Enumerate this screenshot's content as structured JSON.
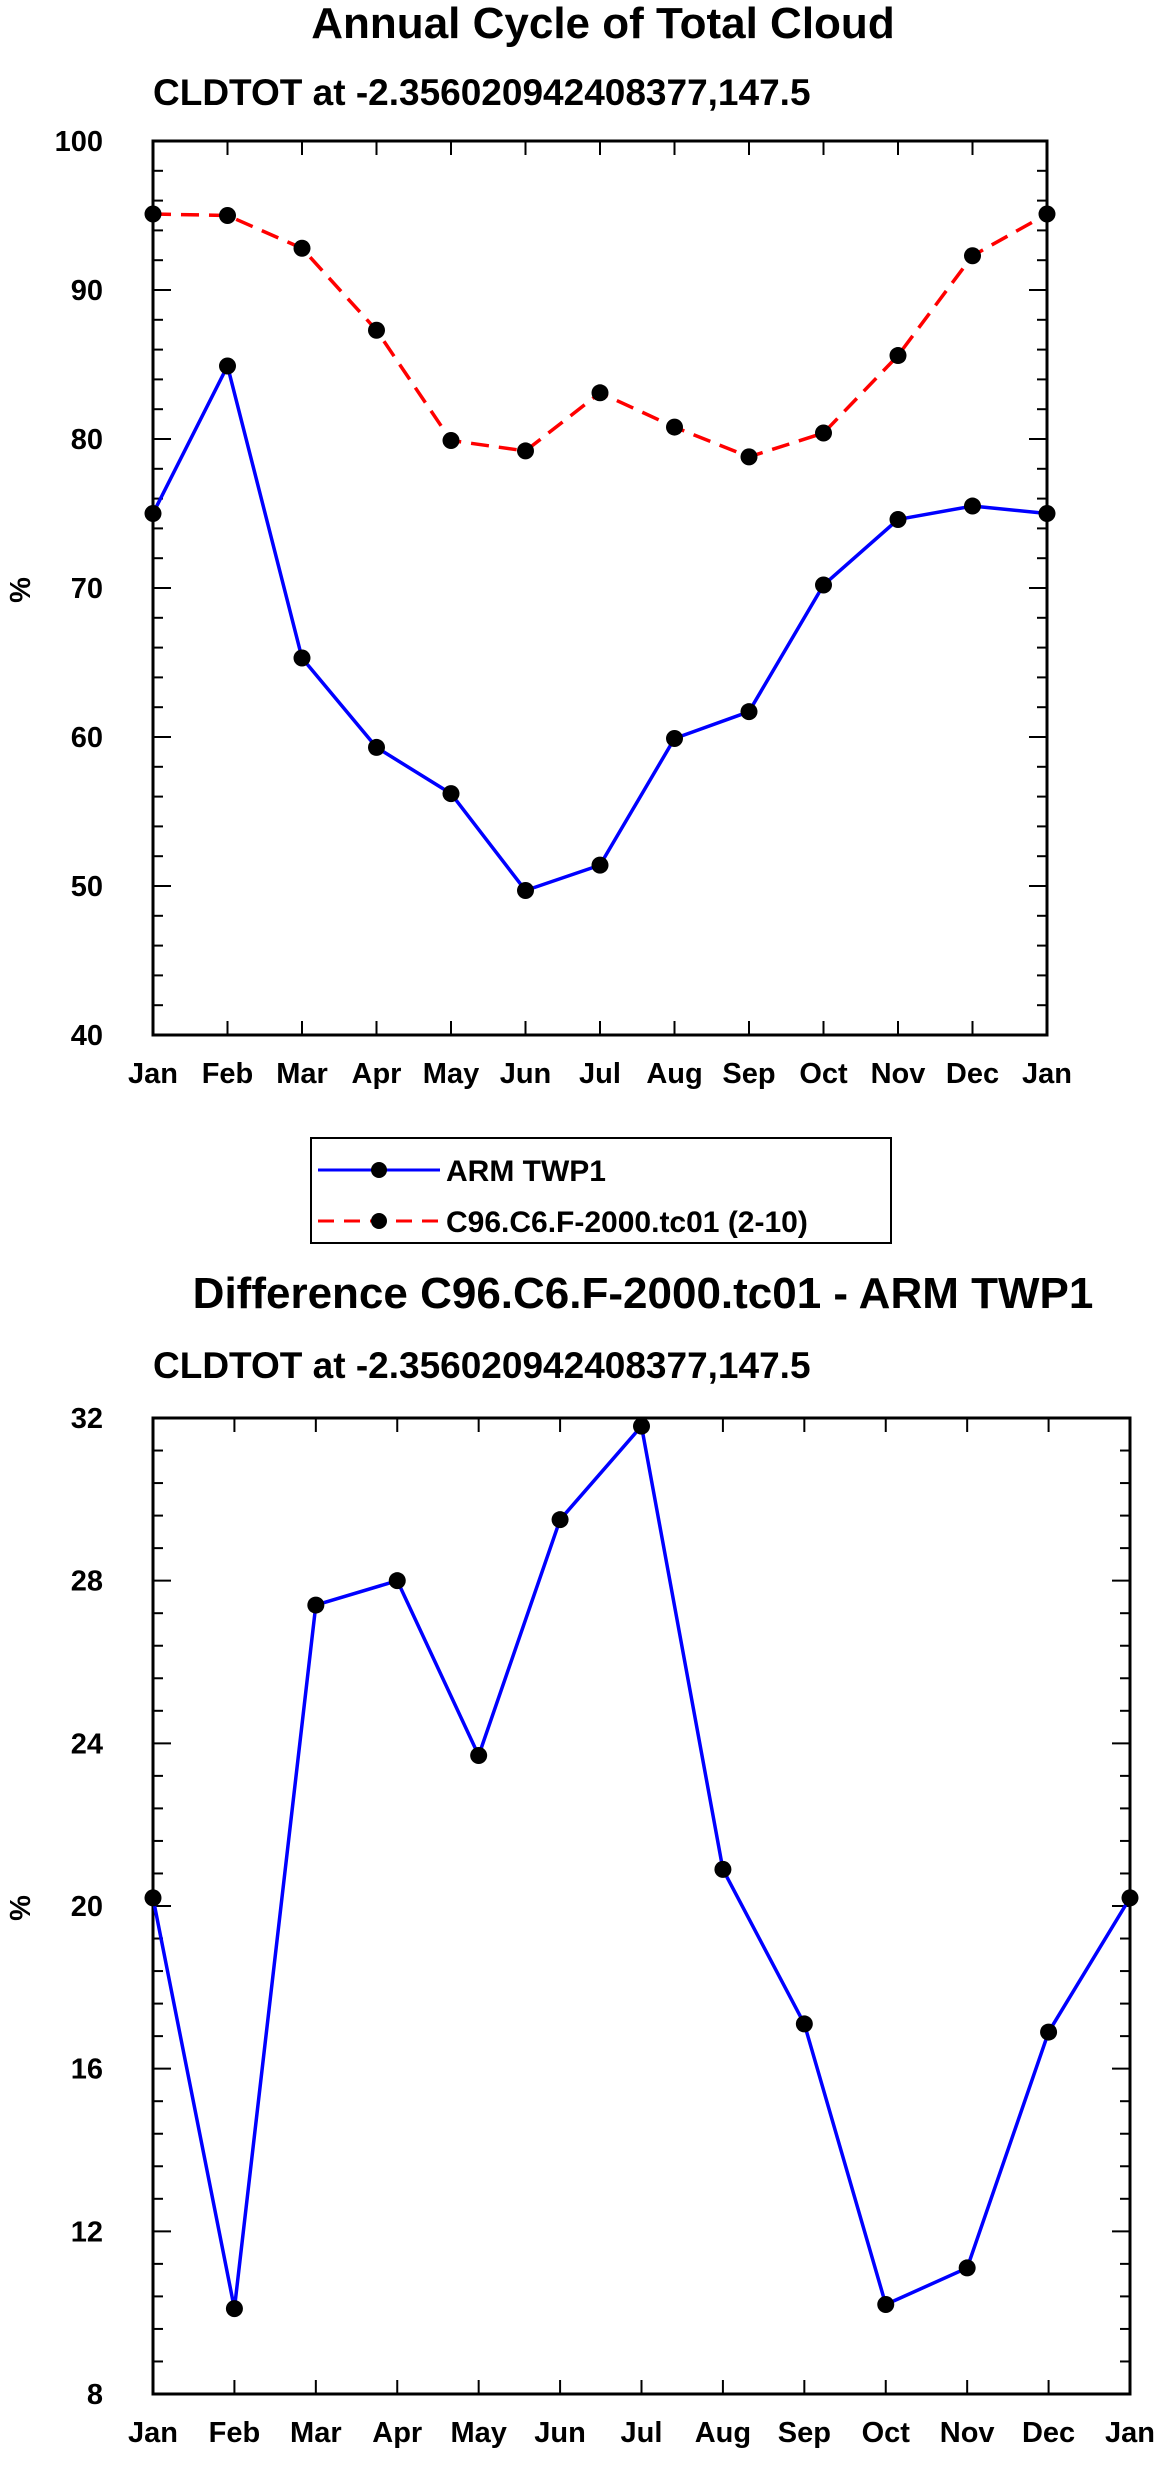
{
  "chart_data": [
    {
      "type": "line",
      "title": "Annual Cycle of Total Cloud",
      "subtitle": "CLDTOT at -2.356020942408377,147.5",
      "xlabel": "",
      "ylabel": "%",
      "categories": [
        "Jan",
        "Feb",
        "Mar",
        "Apr",
        "May",
        "Jun",
        "Jul",
        "Aug",
        "Sep",
        "Oct",
        "Nov",
        "Dec",
        "Jan"
      ],
      "ylim": [
        40,
        100
      ],
      "yticks": [
        40,
        50,
        60,
        70,
        80,
        90,
        100
      ],
      "grid": false,
      "legend_position": "below",
      "series": [
        {
          "name": "ARM TWP1",
          "color": "#0000ff",
          "dash": "solid",
          "values": [
            75.0,
            84.9,
            65.3,
            59.3,
            56.2,
            49.7,
            51.4,
            59.9,
            61.7,
            70.2,
            74.6,
            75.5,
            75.0
          ]
        },
        {
          "name": "C96.C6.F-2000.tc01 (2-10)",
          "color": "#ff0000",
          "dash": "dashed",
          "values": [
            95.1,
            95.0,
            92.8,
            87.3,
            79.9,
            79.2,
            83.1,
            80.8,
            78.8,
            80.4,
            85.6,
            92.3,
            95.1
          ]
        }
      ]
    },
    {
      "type": "line",
      "title": "Difference C96.C6.F-2000.tc01 - ARM TWP1",
      "subtitle": "CLDTOT at -2.356020942408377,147.5",
      "xlabel": "",
      "ylabel": "%",
      "categories": [
        "Jan",
        "Feb",
        "Mar",
        "Apr",
        "May",
        "Jun",
        "Jul",
        "Aug",
        "Sep",
        "Oct",
        "Nov",
        "Dec",
        "Jan"
      ],
      "ylim": [
        8,
        32
      ],
      "yticks": [
        8,
        12,
        16,
        20,
        24,
        28,
        32
      ],
      "grid": false,
      "series": [
        {
          "name": "Difference",
          "color": "#0000ff",
          "dash": "solid",
          "values": [
            20.2,
            10.1,
            27.4,
            28.0,
            23.7,
            29.5,
            31.8,
            20.9,
            17.1,
            10.2,
            11.1,
            16.9,
            20.2
          ]
        }
      ]
    }
  ]
}
